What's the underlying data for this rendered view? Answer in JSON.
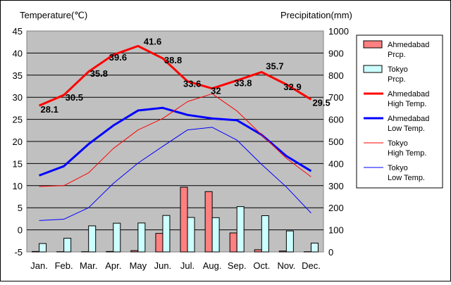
{
  "chart_data": {
    "type": "combo",
    "title": "",
    "left_axis": {
      "label": "Temperature(℃)",
      "ylim": [
        -5,
        45
      ],
      "ticks": [
        -5,
        0,
        5,
        10,
        15,
        20,
        25,
        30,
        35,
        40,
        45
      ]
    },
    "right_axis": {
      "label": "Precipitation(mm)",
      "ylim": [
        0,
        1000
      ],
      "ticks": [
        0,
        100,
        200,
        300,
        400,
        500,
        600,
        700,
        800,
        900,
        1000
      ]
    },
    "categories": [
      "Jan.",
      "Feb.",
      "Mar.",
      "Apr.",
      "May",
      "Jun.",
      "Jul.",
      "Aug.",
      "Sep.",
      "Oct.",
      "Nov.",
      "Dec."
    ],
    "grid": true,
    "legend_position": "right",
    "bar_series": [
      {
        "name": "Ahmedabad Prcp.",
        "legend_lines": [
          "Ahmedabad",
          "Prcp."
        ],
        "color": "#ff8080",
        "values": [
          2,
          1,
          1,
          2,
          6,
          84,
          293,
          273,
          86,
          10,
          4,
          1
        ]
      },
      {
        "name": "Tokyo Prcp.",
        "legend_lines": [
          "Tokyo",
          "Prcp."
        ],
        "color": "#ccffff",
        "values": [
          38,
          62,
          118,
          130,
          131,
          165,
          156,
          155,
          205,
          164,
          95,
          40
        ]
      }
    ],
    "line_series": [
      {
        "name": "Ahmedabad High Temp.",
        "legend_lines": [
          "Ahmedabad",
          "High Temp."
        ],
        "color": "#ff0000",
        "width": 3,
        "values": [
          28.1,
          30.5,
          35.8,
          39.6,
          41.6,
          38.8,
          33.6,
          32.0,
          33.8,
          35.7,
          32.9,
          29.5
        ],
        "labels": [
          "28.1",
          "30.5",
          "35.8",
          "39.6",
          "41.6",
          "38.8",
          "33.6",
          "32",
          "33.8",
          "35.7",
          "32.9",
          "29.5"
        ]
      },
      {
        "name": "Ahmedabad Low Temp.",
        "legend_lines": [
          "Ahmedabad",
          "Low Temp."
        ],
        "color": "#0000ff",
        "width": 3,
        "values": [
          12.3,
          14.4,
          19.4,
          23.6,
          27.0,
          27.6,
          26.0,
          25.2,
          24.8,
          21.5,
          16.7,
          13.3
        ]
      },
      {
        "name": "Tokyo High Temp.",
        "legend_lines": [
          "Tokyo",
          "High Temp."
        ],
        "color": "#ff0000",
        "width": 1,
        "values": [
          9.8,
          10.0,
          12.9,
          18.4,
          22.6,
          25.2,
          29.0,
          30.8,
          26.9,
          21.5,
          16.2,
          12.0
        ]
      },
      {
        "name": "Tokyo Low Temp.",
        "legend_lines": [
          "Tokyo",
          "Low Temp."
        ],
        "color": "#0000ff",
        "width": 1,
        "values": [
          2.1,
          2.4,
          5.0,
          10.5,
          15.1,
          18.9,
          22.6,
          23.2,
          20.3,
          14.8,
          9.7,
          3.8
        ]
      }
    ]
  }
}
